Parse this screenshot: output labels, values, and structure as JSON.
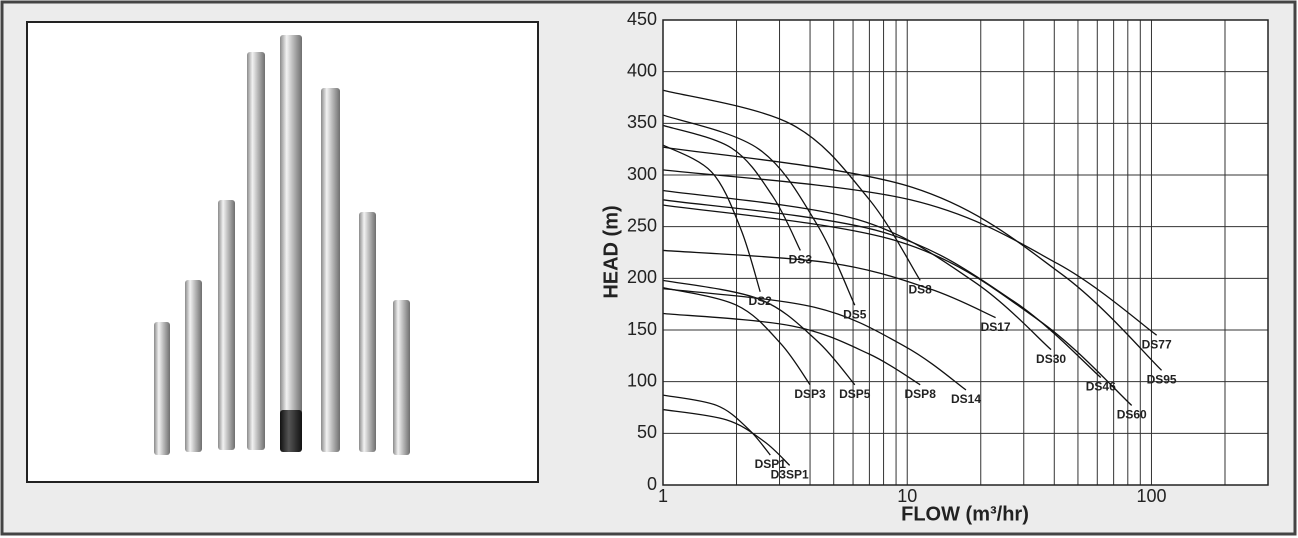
{
  "chart_data": {
    "type": "line",
    "xlabel": "FLOW (m³/hr)",
    "ylabel": "HEAD (m)",
    "xscale": "log",
    "grid": true,
    "color": "#111111",
    "xlim": [
      1,
      300
    ],
    "xticks": [
      1,
      10,
      100
    ],
    "xminorticks": [
      2,
      3,
      4,
      5,
      6,
      7,
      8,
      9,
      20,
      30,
      40,
      50,
      60,
      70,
      80,
      90,
      200
    ],
    "ylim": [
      0,
      450
    ],
    "yticks": [
      0,
      50,
      100,
      150,
      200,
      250,
      300,
      350,
      400,
      450
    ],
    "series": [
      {
        "name": "DSP1",
        "x": [
          1,
          1.66,
          2.24,
          2.75
        ],
        "values": [
          87,
          77,
          54,
          29
        ]
      },
      {
        "name": "D3SP1",
        "x": [
          1,
          1.82,
          2.6,
          3.3
        ],
        "values": [
          73,
          63,
          42,
          19
        ]
      },
      {
        "name": "DSP3",
        "x": [
          1,
          2,
          3.03,
          4
        ],
        "values": [
          191,
          174,
          137,
          97
        ]
      },
      {
        "name": "DSP5",
        "x": [
          1,
          2.47,
          4.25,
          6.1
        ],
        "values": [
          198,
          180,
          140,
          97
        ]
      },
      {
        "name": "DSP8",
        "x": [
          1,
          3.36,
          6.95,
          11.3
        ],
        "values": [
          166,
          154,
          127,
          97
        ]
      },
      {
        "name": "DS14",
        "x": [
          1,
          4.17,
          9.8,
          17.4
        ],
        "values": [
          190,
          172,
          134,
          92
        ]
      },
      {
        "name": "DS2",
        "x": [
          1,
          1.58,
          2.08,
          2.5
        ],
        "values": [
          329,
          303,
          248,
          187
        ]
      },
      {
        "name": "DS3",
        "x": [
          1,
          1.91,
          2.82,
          3.65
        ],
        "values": [
          348,
          326,
          279,
          227
        ]
      },
      {
        "name": "DS5",
        "x": [
          1,
          2.47,
          4.25,
          6.1
        ],
        "values": [
          358,
          325,
          253,
          174
        ]
      },
      {
        "name": "DS8",
        "x": [
          1,
          3.36,
          6.95,
          11.3
        ],
        "values": [
          382,
          349,
          277,
          198
        ]
      },
      {
        "name": "DS17",
        "x": [
          1,
          4.8,
          12.3,
          23
        ],
        "values": [
          227,
          215,
          190,
          162
        ]
      },
      {
        "name": "DS30",
        "x": [
          1,
          6.23,
          18.7,
          38.8
        ],
        "values": [
          285,
          257,
          197,
          131
        ]
      },
      {
        "name": "DS46",
        "x": [
          1,
          7.87,
          27.2,
          62
        ],
        "values": [
          276,
          245,
          178,
          104
        ]
      },
      {
        "name": "DS60",
        "x": [
          1,
          9.12,
          34.3,
          83
        ],
        "values": [
          271,
          236,
          160,
          77
        ]
      },
      {
        "name": "DS77",
        "x": [
          1,
          10.3,
          41.4,
          105
        ],
        "values": [
          305,
          276,
          214,
          145
        ]
      },
      {
        "name": "DS95",
        "x": [
          1,
          10.5,
          42.9,
          110
        ],
        "values": [
          327,
          288,
          204,
          111
        ]
      }
    ]
  }
}
